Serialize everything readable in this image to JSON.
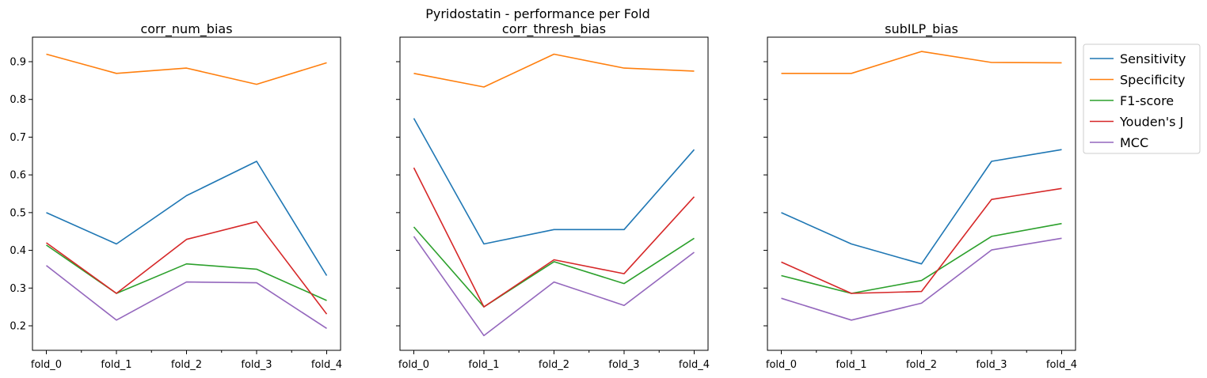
{
  "figure_title": "Pyridostatin - performance per Fold",
  "colors": {
    "Sensitivity": "#1f77b4",
    "Specificity": "#ff7f0e",
    "F1-score": "#2ca02c",
    "Youden's J": "#d62728",
    "MCC": "#9467bd"
  },
  "chart_data": [
    {
      "type": "line",
      "title": "corr_num_bias",
      "categories": [
        "fold_0",
        "fold_1",
        "fold_2",
        "fold_3",
        "fold_4"
      ],
      "yticks": [
        "0.2",
        "0.3",
        "0.4",
        "0.5",
        "0.6",
        "0.7",
        "0.8",
        "0.9"
      ],
      "ylim": [
        0.135,
        0.965
      ],
      "series": [
        {
          "name": "Sensitivity",
          "values": [
            0.5,
            0.417,
            0.545,
            0.636,
            0.333
          ]
        },
        {
          "name": "Specificity",
          "values": [
            0.92,
            0.869,
            0.883,
            0.84,
            0.897
          ]
        },
        {
          "name": "F1-score",
          "values": [
            0.414,
            0.286,
            0.364,
            0.35,
            0.267
          ]
        },
        {
          "name": "Youden's J",
          "values": [
            0.42,
            0.286,
            0.429,
            0.476,
            0.231
          ]
        },
        {
          "name": "MCC",
          "values": [
            0.36,
            0.215,
            0.316,
            0.314,
            0.193
          ]
        }
      ]
    },
    {
      "type": "line",
      "title": "corr_thresh_bias",
      "categories": [
        "fold_0",
        "fold_1",
        "fold_2",
        "fold_3",
        "fold_4"
      ],
      "yticks": [],
      "ylim": [
        0.135,
        0.965
      ],
      "series": [
        {
          "name": "Sensitivity",
          "values": [
            0.75,
            0.417,
            0.455,
            0.455,
            0.667
          ]
        },
        {
          "name": "Specificity",
          "values": [
            0.869,
            0.833,
            0.92,
            0.883,
            0.875
          ]
        },
        {
          "name": "F1-score",
          "values": [
            0.462,
            0.25,
            0.37,
            0.312,
            0.432
          ]
        },
        {
          "name": "Youden's J",
          "values": [
            0.619,
            0.25,
            0.375,
            0.338,
            0.542
          ]
        },
        {
          "name": "MCC",
          "values": [
            0.437,
            0.174,
            0.316,
            0.254,
            0.395
          ]
        }
      ]
    },
    {
      "type": "line",
      "title": "subILP_bias",
      "categories": [
        "fold_0",
        "fold_1",
        "fold_2",
        "fold_3",
        "fold_4"
      ],
      "yticks": [],
      "ylim": [
        0.135,
        0.965
      ],
      "series": [
        {
          "name": "Sensitivity",
          "values": [
            0.5,
            0.417,
            0.364,
            0.636,
            0.667
          ]
        },
        {
          "name": "Specificity",
          "values": [
            0.869,
            0.869,
            0.927,
            0.898,
            0.897
          ]
        },
        {
          "name": "F1-score",
          "values": [
            0.333,
            0.286,
            0.32,
            0.437,
            0.471
          ]
        },
        {
          "name": "Youden's J",
          "values": [
            0.369,
            0.286,
            0.291,
            0.535,
            0.564
          ]
        },
        {
          "name": "MCC",
          "values": [
            0.273,
            0.215,
            0.26,
            0.401,
            0.432
          ]
        }
      ]
    }
  ],
  "legend": {
    "placement": "outside-right",
    "entries": [
      "Sensitivity",
      "Specificity",
      "F1-score",
      "Youden's J",
      "MCC"
    ]
  }
}
